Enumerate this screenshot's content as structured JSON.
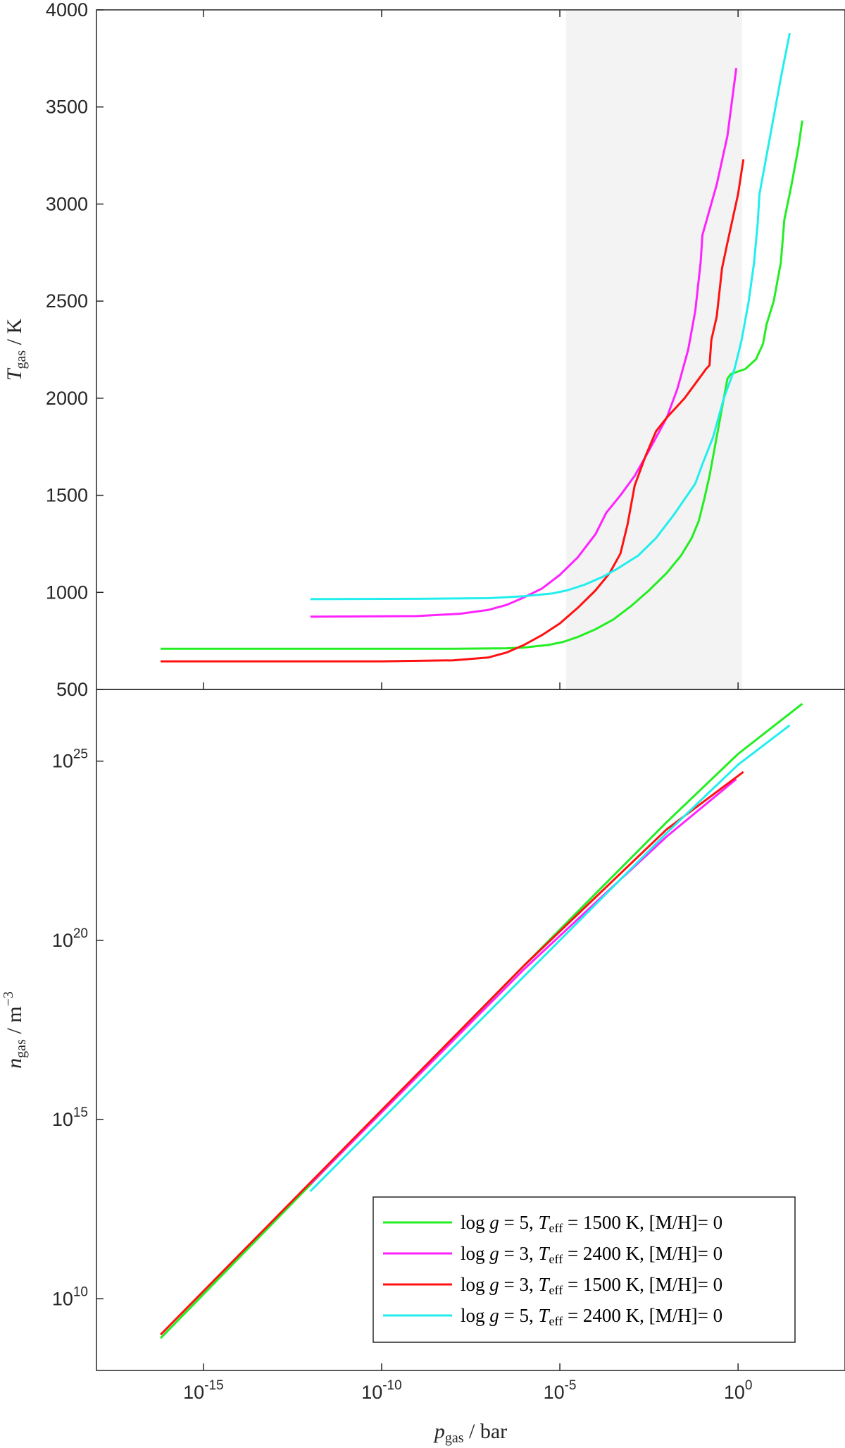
{
  "chart_data": [
    {
      "type": "line",
      "panel": "top",
      "ylabel": {
        "main": "T",
        "sub": "gas",
        "rest": " / K"
      },
      "xscale": "log",
      "xlim": [
        1e-18,
        1000.0
      ],
      "ylim": [
        500,
        4000
      ],
      "yticks": [
        500,
        1000,
        1500,
        2000,
        2500,
        3000,
        3500,
        4000
      ],
      "ytick_labels": [
        "500",
        "1000",
        "1500",
        "2000",
        "2500",
        "3000",
        "3500",
        "4000"
      ],
      "shaded_x_range": [
        1.5e-05,
        1.3
      ],
      "shade_color": "#f3f3f3",
      "series": [
        {
          "id": "g5-1500",
          "color": "#22ee22",
          "points": [
            [
              -16.2,
              710
            ],
            [
              -10,
              710
            ],
            [
              -8,
              710
            ],
            [
              -6.5,
              712
            ],
            [
              -6,
              716
            ],
            [
              -5.3,
              730
            ],
            [
              -4.9,
              745
            ],
            [
              -4.5,
              770
            ],
            [
              -4,
              810
            ],
            [
              -3.5,
              860
            ],
            [
              -3,
              930
            ],
            [
              -2.5,
              1010
            ],
            [
              -2,
              1100
            ],
            [
              -1.6,
              1190
            ],
            [
              -1.3,
              1280
            ],
            [
              -1.1,
              1370
            ],
            [
              -0.95,
              1480
            ],
            [
              -0.8,
              1600
            ],
            [
              -0.6,
              1800
            ],
            [
              -0.4,
              2000
            ],
            [
              -0.3,
              2100
            ],
            [
              -0.2,
              2125
            ],
            [
              0.2,
              2150
            ],
            [
              0.5,
              2200
            ],
            [
              0.7,
              2280
            ],
            [
              0.8,
              2380
            ],
            [
              1,
              2500
            ],
            [
              1.2,
              2700
            ],
            [
              1.3,
              2920
            ],
            [
              1.5,
              3100
            ],
            [
              1.7,
              3300
            ],
            [
              1.8,
              3430
            ]
          ]
        },
        {
          "id": "g3-2400",
          "color": "#ff22ff",
          "points": [
            [
              -12,
              875
            ],
            [
              -9,
              878
            ],
            [
              -7.8,
              890
            ],
            [
              -7,
              910
            ],
            [
              -6.5,
              935
            ],
            [
              -6,
              975
            ],
            [
              -5.5,
              1020
            ],
            [
              -5,
              1090
            ],
            [
              -4.5,
              1180
            ],
            [
              -4,
              1300
            ],
            [
              -3.7,
              1410
            ],
            [
              -3.3,
              1500
            ],
            [
              -2.9,
              1600
            ],
            [
              -2.5,
              1730
            ],
            [
              -2,
              1900
            ],
            [
              -1.7,
              2050
            ],
            [
              -1.4,
              2250
            ],
            [
              -1.2,
              2450
            ],
            [
              -1.05,
              2700
            ],
            [
              -1,
              2840
            ],
            [
              -0.6,
              3100
            ],
            [
              -0.3,
              3350
            ],
            [
              -0.05,
              3700
            ]
          ]
        },
        {
          "id": "g3-1500",
          "color": "#ff1111",
          "points": [
            [
              -16.2,
              645
            ],
            [
              -10,
              645
            ],
            [
              -8,
              650
            ],
            [
              -7,
              665
            ],
            [
              -6.5,
              690
            ],
            [
              -6,
              730
            ],
            [
              -5.5,
              780
            ],
            [
              -5,
              840
            ],
            [
              -4.5,
              920
            ],
            [
              -4,
              1010
            ],
            [
              -3.6,
              1100
            ],
            [
              -3.3,
              1200
            ],
            [
              -3.1,
              1350
            ],
            [
              -2.9,
              1550
            ],
            [
              -2.6,
              1700
            ],
            [
              -2.3,
              1830
            ],
            [
              -2,
              1900
            ],
            [
              -1.5,
              2000
            ],
            [
              -1.1,
              2100
            ],
            [
              -0.9,
              2150
            ],
            [
              -0.8,
              2170
            ],
            [
              -0.75,
              2300
            ],
            [
              -0.6,
              2420
            ],
            [
              -0.45,
              2670
            ],
            [
              -0.3,
              2800
            ],
            [
              0,
              3050
            ],
            [
              0.15,
              3230
            ]
          ]
        },
        {
          "id": "g5-2400",
          "color": "#22eeee",
          "points": [
            [
              -12,
              965
            ],
            [
              -9,
              967
            ],
            [
              -7,
              970
            ],
            [
              -6,
              980
            ],
            [
              -5.2,
              995
            ],
            [
              -4.8,
              1010
            ],
            [
              -4.3,
              1040
            ],
            [
              -3.8,
              1080
            ],
            [
              -3.4,
              1120
            ],
            [
              -2.8,
              1190
            ],
            [
              -2.3,
              1280
            ],
            [
              -1.8,
              1400
            ],
            [
              -1.2,
              1560
            ],
            [
              -1,
              1660
            ],
            [
              -0.7,
              1800
            ],
            [
              -0.4,
              2000
            ],
            [
              -0.1,
              2150
            ],
            [
              0.1,
              2300
            ],
            [
              0.3,
              2500
            ],
            [
              0.45,
              2700
            ],
            [
              0.55,
              2900
            ],
            [
              0.6,
              3050
            ],
            [
              0.8,
              3250
            ],
            [
              1,
              3450
            ],
            [
              1.2,
              3650
            ],
            [
              1.45,
              3880
            ]
          ]
        }
      ]
    },
    {
      "type": "line",
      "panel": "bottom",
      "xlabel": {
        "main": "p",
        "sub": "gas",
        "rest": " / bar"
      },
      "ylabel": {
        "main": "n",
        "sub": "gas",
        "rest": " / m",
        "sup": "−3"
      },
      "xscale": "log",
      "yscale": "log",
      "xlim": [
        1e-18,
        1000.0
      ],
      "ylim": [
        100000000.0,
        1e+27
      ],
      "xticks_log10": [
        -15,
        -10,
        -5,
        0
      ],
      "xtick_base": "10",
      "xtick_exponents": [
        "-15",
        "-10",
        "-5",
        "0"
      ],
      "yticks_log10": [
        10,
        15,
        20,
        25
      ],
      "ytick_base": "10",
      "ytick_exponents": [
        "10",
        "15",
        "20",
        "25"
      ],
      "legend_position": "lower-right",
      "series": [
        {
          "id": "g5-1500",
          "color": "#22ee22",
          "points": [
            [
              -16.2,
              8.9
            ],
            [
              -6,
              19.3
            ],
            [
              -2,
              23.3
            ],
            [
              0,
              25.2
            ],
            [
              1.8,
              26.6
            ]
          ]
        },
        {
          "id": "g3-2400",
          "color": "#ff22ff",
          "points": [
            [
              -12,
              13.2
            ],
            [
              -6,
              19.2
            ],
            [
              -2,
              22.9
            ],
            [
              -0.05,
              24.5
            ]
          ]
        },
        {
          "id": "g3-1500",
          "color": "#ff1111",
          "points": [
            [
              -16.2,
              9.0
            ],
            [
              -6,
              19.3
            ],
            [
              -2,
              23.1
            ],
            [
              0.15,
              24.7
            ]
          ]
        },
        {
          "id": "g5-2400",
          "color": "#22eeee",
          "points": [
            [
              -12,
              13.0
            ],
            [
              -6,
              19.0
            ],
            [
              -2,
              23.0
            ],
            [
              0,
              24.9
            ],
            [
              1.45,
              26.0
            ]
          ]
        }
      ]
    }
  ],
  "legend": [
    {
      "series": "g5-1500",
      "color": "#22ee22",
      "logg_prefix": "log ",
      "logg_var": "g",
      "logg_value": " = 5, ",
      "teff_var": "T",
      "teff_sub": "eff",
      "teff_value": " = 1500 K, ",
      "metal_label": "[M/H]",
      "metal_value": "= 0"
    },
    {
      "series": "g3-2400",
      "color": "#ff22ff",
      "logg_prefix": "log ",
      "logg_var": "g",
      "logg_value": " = 3, ",
      "teff_var": "T",
      "teff_sub": "eff",
      "teff_value": " = 2400 K, ",
      "metal_label": "[M/H]",
      "metal_value": "= 0"
    },
    {
      "series": "g3-1500",
      "color": "#ff1111",
      "logg_prefix": "log ",
      "logg_var": "g",
      "logg_value": " = 3, ",
      "teff_var": "T",
      "teff_sub": "eff",
      "teff_value": " = 1500 K, ",
      "metal_label": "[M/H]",
      "metal_value": "= 0"
    },
    {
      "series": "g5-2400",
      "color": "#22eeee",
      "logg_prefix": "log ",
      "logg_var": "g",
      "logg_value": " = 5, ",
      "teff_var": "T",
      "teff_sub": "eff",
      "teff_value": " = 2400 K, ",
      "metal_label": "[M/H]",
      "metal_value": "= 0"
    }
  ]
}
